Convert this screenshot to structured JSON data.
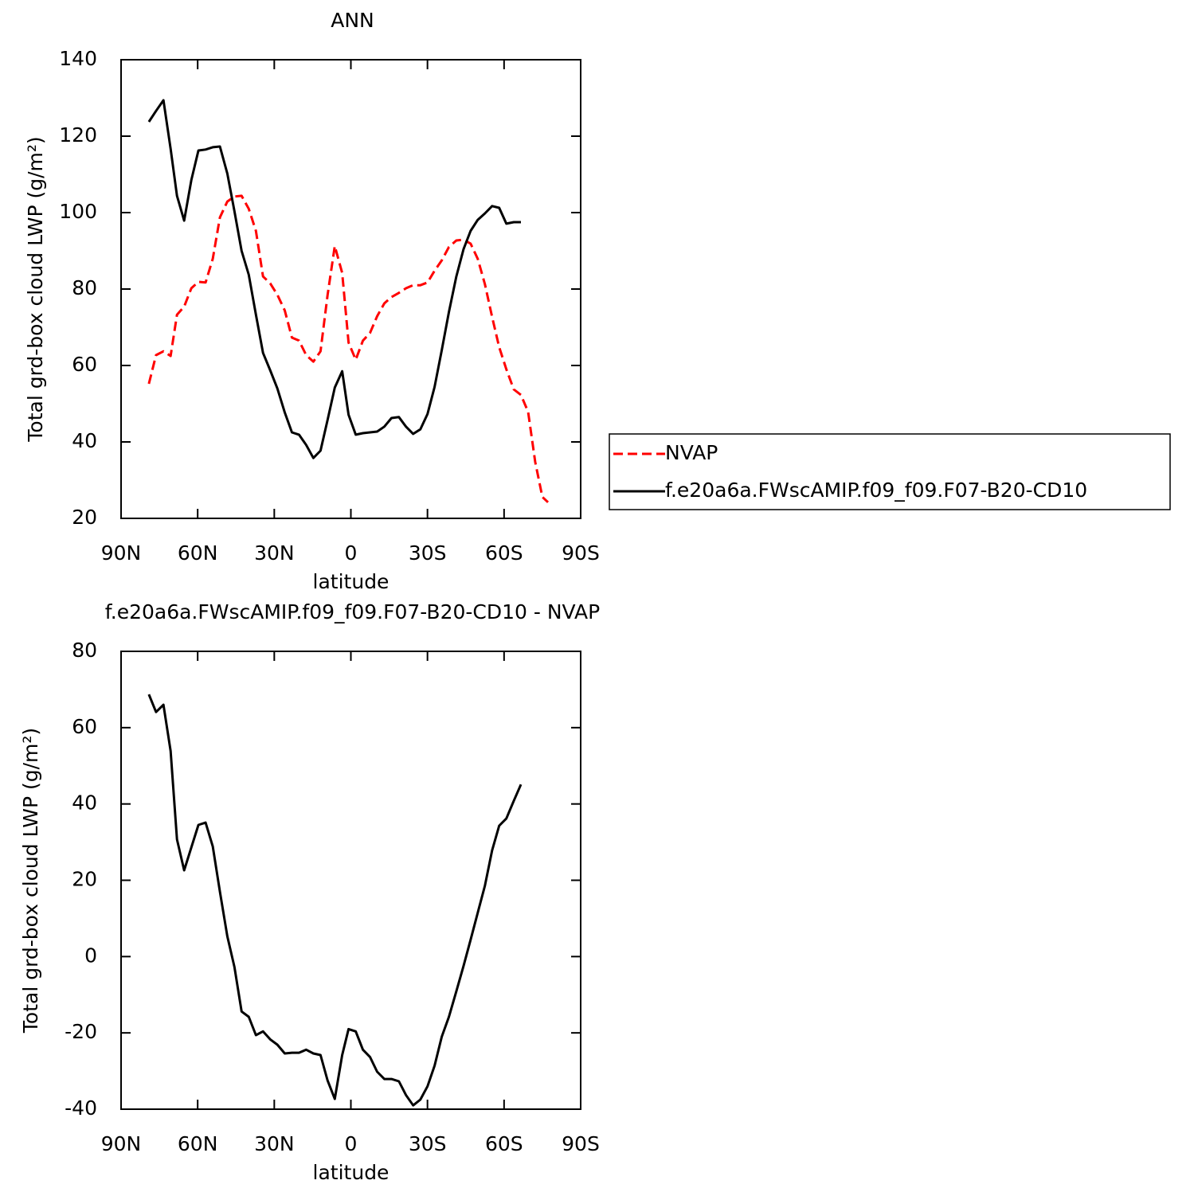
{
  "chart_data": [
    {
      "type": "line",
      "title": "ANN",
      "xlabel": "latitude",
      "ylabel": "Total grd-box cloud LWP (g/m²)",
      "xlim": [
        90,
        -90
      ],
      "xticks": [
        {
          "value": 90,
          "label": "90N"
        },
        {
          "value": 60,
          "label": "60N"
        },
        {
          "value": 30,
          "label": "30N"
        },
        0,
        {
          "value": -30,
          "label": "30S"
        },
        {
          "value": -60,
          "label": "60S"
        },
        {
          "value": -90,
          "label": "90S"
        }
      ],
      "ylim": [
        20,
        140
      ],
      "yticks": [
        20,
        40,
        60,
        80,
        100,
        120,
        140
      ],
      "legend": "right",
      "x": [
        79.1,
        76.3,
        73.4,
        70.6,
        68.1,
        65.3,
        62.5,
        59.7,
        56.9,
        54.1,
        51.3,
        48.4,
        45.6,
        42.8,
        40,
        37.2,
        34.4,
        31.6,
        28.8,
        25.9,
        23.1,
        20.3,
        17.5,
        14.7,
        11.9,
        9.1,
        6.3,
        3.4,
        0.9,
        -1.9,
        -4.7,
        -7.5,
        -10.3,
        -13.1,
        -15.9,
        -18.8,
        -21.6,
        -24.4,
        -27.2,
        -30,
        -32.8,
        -35.6,
        -38.4,
        -41.3,
        -44.1,
        -46.9,
        -49.7,
        -52.5,
        -55.3,
        -58.1,
        -60.9,
        -63.8,
        -66.6,
        -69.4,
        -72.2,
        -75,
        -77.2
      ],
      "series": [
        {
          "name": "NVAP",
          "color": "#ff0000",
          "style": "dashed",
          "values": [
            55.2,
            62.7,
            63.7,
            62.5,
            73.3,
            75.4,
            80.2,
            81.9,
            81.7,
            87.9,
            98.75,
            102.9,
            104.2,
            104.4,
            101,
            95.2,
            83.3,
            81.5,
            78.5,
            74.4,
            67.3,
            66.5,
            62.7,
            61,
            63.7,
            78.5,
            91.25,
            84.2,
            66,
            61.5,
            66.5,
            68.5,
            72.9,
            76.25,
            77.9,
            79,
            80.2,
            81,
            81,
            81.7,
            84.8,
            87.5,
            91,
            92.7,
            92.9,
            91.9,
            87.9,
            81.25,
            72.7,
            64.8,
            59,
            53.75,
            52.3,
            47.9,
            34.8,
            25.6,
            24.2
          ]
        },
        {
          "name": "f.e20a6a.FWscAMIP.f09_f09.F07-B20-CD10",
          "color": "#000000",
          "style": "solid",
          "values": [
            123.75,
            126.6,
            129.4,
            116.7,
            104.4,
            97.9,
            108.5,
            116.25,
            116.5,
            117.1,
            117.3,
            110.2,
            100.4,
            90,
            83.75,
            73.3,
            63.3,
            58.75,
            54,
            47.7,
            42.5,
            41.9,
            39.2,
            35.8,
            37.7,
            45.8,
            54.2,
            58.5,
            47.1,
            41.9,
            42.3,
            42.5,
            42.7,
            44,
            46.25,
            46.5,
            44,
            42.1,
            43.3,
            47.3,
            54.4,
            64,
            74,
            83.3,
            90.4,
            95.2,
            98.1,
            99.8,
            101.7,
            101.25,
            97.1,
            97.5,
            97.5,
            null,
            null,
            null,
            null
          ]
        }
      ]
    },
    {
      "type": "line",
      "title": "f.e20a6a.FWscAMIP.f09_f09.F07-B20-CD10 - NVAP",
      "xlabel": "latitude",
      "ylabel": "Total grd-box cloud LWP (g/m²)",
      "xlim": [
        90,
        -90
      ],
      "xticks": [
        {
          "value": 90,
          "label": "90N"
        },
        {
          "value": 60,
          "label": "60N"
        },
        {
          "value": 30,
          "label": "30N"
        },
        0,
        {
          "value": -30,
          "label": "30S"
        },
        {
          "value": -60,
          "label": "60S"
        },
        {
          "value": -90,
          "label": "90S"
        }
      ],
      "ylim": [
        -40,
        80
      ],
      "yticks": [
        -40,
        -20,
        0,
        20,
        40,
        60,
        80
      ],
      "x": [
        79.1,
        76.3,
        73.4,
        70.6,
        68.1,
        65.3,
        62.5,
        59.7,
        56.9,
        54.1,
        51.3,
        48.4,
        45.6,
        42.8,
        40,
        37.2,
        34.4,
        31.6,
        28.8,
        25.9,
        23.1,
        20.3,
        17.5,
        14.7,
        11.9,
        9.1,
        6.3,
        3.4,
        0.9,
        -1.9,
        -4.7,
        -7.5,
        -10.3,
        -13.1,
        -15.9,
        -18.8,
        -21.6,
        -24.4,
        -27.2,
        -30,
        -32.8,
        -35.6,
        -38.4,
        -41.3,
        -44.1,
        -46.9,
        -49.7,
        -52.5,
        -55.3,
        -58.1,
        -60.9,
        -63.8,
        -66.6
      ],
      "color": "#000000",
      "values": [
        68.7,
        64.1,
        66,
        53.9,
        30.7,
        22.6,
        28.6,
        34.5,
        35.1,
        28.9,
        17,
        5.3,
        -2.7,
        -14.4,
        -15.8,
        -20.6,
        -19.6,
        -21.7,
        -23.1,
        -25.4,
        -25.2,
        -25.2,
        -24.4,
        -25.4,
        -25.8,
        -32.5,
        -37.3,
        -25.8,
        -19,
        -19.6,
        -24.4,
        -26.3,
        -30.2,
        -32.1,
        -32.1,
        -32.7,
        -36.3,
        -39,
        -37.5,
        -34,
        -28.6,
        -21,
        -15.8,
        -9.1,
        -2.5,
        4.4,
        11.5,
        18.6,
        27.8,
        34.3,
        36.2,
        40.8,
        45.1
      ]
    }
  ]
}
